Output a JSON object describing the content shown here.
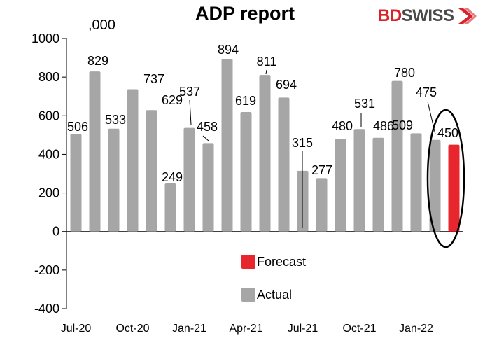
{
  "chart_data": {
    "type": "bar",
    "title": "ADP report",
    "unit_label": ",000",
    "brand": {
      "part1": "BD",
      "part2": "SWISS"
    },
    "colors": {
      "actual": "#a6a6a6",
      "forecast": "#e8262d",
      "brand_red": "#d8232a",
      "brand_gray": "#4a4a4a"
    },
    "ylim": [
      -400,
      1000
    ],
    "yticks": [
      -400,
      -200,
      0,
      200,
      400,
      600,
      800,
      1000
    ],
    "x_tick_labels": [
      "Jul-20",
      "Oct-20",
      "Jan-21",
      "Apr-21",
      "Jul-21",
      "Oct-21",
      "Jan-22"
    ],
    "legend": {
      "placement": "bottom-center",
      "entries": [
        "Forecast",
        "Actual"
      ]
    },
    "series": [
      {
        "name": "Actual",
        "values": [
          506,
          829,
          533,
          737,
          629,
          249,
          537,
          458,
          894,
          619,
          811,
          694,
          315,
          277,
          480,
          531,
          486,
          780,
          509,
          475
        ]
      },
      {
        "name": "Forecast",
        "values": [
          null,
          null,
          null,
          null,
          null,
          null,
          null,
          null,
          null,
          null,
          null,
          null,
          null,
          null,
          null,
          null,
          null,
          null,
          null,
          null,
          450
        ]
      }
    ],
    "highlight": "forecast bar circled"
  }
}
